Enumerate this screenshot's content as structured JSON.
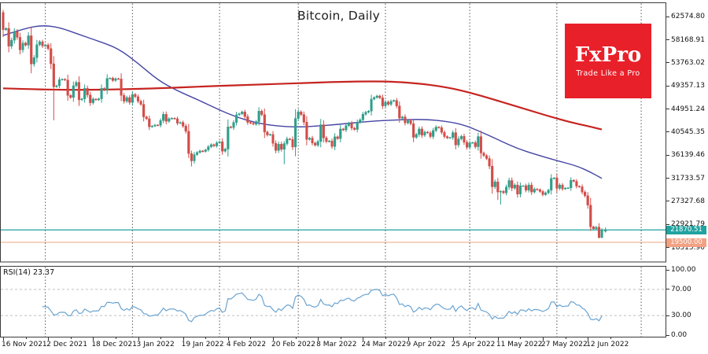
{
  "window": {
    "title": "Bitcoin, Daily"
  },
  "logo": {
    "brand": "FxPro",
    "tagline": "Trade Like a Pro",
    "bg": "#e8202a"
  },
  "rsi": {
    "label": "RSI(14) 23.37",
    "period": 14,
    "last_value": 23.37,
    "levels": [
      70,
      30
    ],
    "axis_ticks": [
      "100.00",
      "70.00",
      "30.00",
      "0.00"
    ],
    "axis_tick_values": [
      100,
      70,
      30,
      0
    ],
    "line_color": "#6aa3d0"
  },
  "price_axis": {
    "tick_labels": [
      "62574.80",
      "58168.91",
      "53763.02",
      "49357.13",
      "44951.24",
      "40545.35",
      "36139.46",
      "31733.57",
      "27327.68",
      "22921.79",
      "18515.90"
    ],
    "badges": [
      {
        "name": "current-price-badge",
        "text": "21870.51",
        "value": 21870.51,
        "bg": "#21a3a0"
      },
      {
        "name": "support-level-badge",
        "text": "19500.00",
        "value": 19500.0,
        "bg": "#f2a183"
      }
    ]
  },
  "date_axis": {
    "labels": [
      {
        "text": "16 Nov 2021",
        "day": 0
      },
      {
        "text": "2 Dec 2021",
        "day": 16
      },
      {
        "text": "18 Dec 2021",
        "day": 32
      },
      {
        "text": "3 Jan 2022",
        "day": 48
      },
      {
        "text": "19 Jan 2022",
        "day": 64
      },
      {
        "text": "4 Feb 2022",
        "day": 80
      },
      {
        "text": "20 Feb 2022",
        "day": 96
      },
      {
        "text": "8 Mar 2022",
        "day": 112
      },
      {
        "text": "24 Mar 2022",
        "day": 128
      },
      {
        "text": "9 Apr 2022",
        "day": 144
      },
      {
        "text": "25 Apr 2022",
        "day": 160
      },
      {
        "text": "11 May 2022",
        "day": 176
      },
      {
        "text": "27 May 2022",
        "day": 192
      },
      {
        "text": "12 Jun 2022",
        "day": 208
      }
    ]
  },
  "chart_data": {
    "type": "candlestick",
    "title": "Bitcoin, Daily",
    "symbol": "Bitcoin",
    "timeframe": "Daily",
    "x_range_days": 227,
    "price_axis_values": [
      62574.8,
      58168.91,
      53763.02,
      49357.13,
      44951.24,
      40545.35,
      36139.46,
      31733.57,
      27327.68,
      22921.79,
      18515.9
    ],
    "grid_month_days": [
      15,
      46,
      77,
      105,
      136,
      166,
      197,
      227
    ],
    "style": {
      "bull": "#2f9e8a",
      "bear": "#d24c48",
      "grid": "#555",
      "border": "#3a3a3a"
    },
    "first_open": 63400,
    "closes": [
      60100,
      60350,
      56950,
      58100,
      59750,
      58650,
      56250,
      57550,
      57150,
      58950,
      53550,
      54750,
      57250,
      57800,
      57000,
      57200,
      56500,
      53600,
      49200,
      49400,
      50550,
      50650,
      50500,
      47550,
      47150,
      49400,
      50050,
      46700,
      46900,
      48900,
      47650,
      46150,
      46850,
      46700,
      46900,
      48900,
      48600,
      50800,
      50850,
      50400,
      50750,
      50700,
      47550,
      46450,
      47150,
      46200,
      47750,
      47300,
      46450,
      45850,
      43450,
      43100,
      41550,
      41700,
      41900,
      41850,
      42750,
      43950,
      42600,
      43100,
      43200,
      43100,
      42250,
      42400,
      41700,
      40700,
      36450,
      35050,
      36250,
      36650,
      36950,
      36850,
      37150,
      37750,
      38150,
      37900,
      38500,
      38700,
      36900,
      37300,
      41550,
      41400,
      42400,
      43850,
      44050,
      44400,
      43500,
      42400,
      42250,
      42050,
      42550,
      44550,
      43900,
      40550,
      40000,
      40100,
      38400,
      37050,
      38250,
      37250,
      38350,
      39250,
      39150,
      37700,
      43150,
      44400,
      43900,
      42450,
      39150,
      39400,
      38450,
      38050,
      38750,
      41950,
      39450,
      38750,
      38850,
      37800,
      39650,
      39300,
      41150,
      40950,
      41800,
      42250,
      41300,
      41050,
      42400,
      42900,
      43950,
      44350,
      44550,
      46850,
      47150,
      47450,
      47100,
      45550,
      46300,
      45850,
      46450,
      46600,
      45550,
      43200,
      43450,
      42300,
      42750,
      42150,
      39550,
      40100,
      41150,
      39950,
      40550,
      40400,
      39700,
      40850,
      41500,
      41400,
      40500,
      39700,
      39450,
      39500,
      40450,
      38100,
      39250,
      39750,
      38600,
      37650,
      38500,
      38550,
      37750,
      39700,
      36550,
      36050,
      35500,
      34050,
      30100,
      31050,
      29100,
      29250,
      28950,
      30050,
      31300,
      29850,
      30450,
      28700,
      30300,
      30300,
      29450,
      30450,
      29100,
      29650,
      29550,
      29200,
      28600,
      28950,
      29450,
      31700,
      31800,
      29800,
      30450,
      29700,
      29850,
      29900,
      31350,
      31150,
      30200,
      30100,
      29100,
      28400,
      26600,
      22450,
      22100,
      22400,
      20400,
      21870.51
    ],
    "wick_overrides": {
      "0": {
        "high": 63900,
        "low": 58700
      },
      "18": {
        "low": 42800
      },
      "66": {
        "low": 35600
      },
      "67": {
        "low": 34000
      },
      "100": {
        "low": 34400
      },
      "176": {
        "low": 27600
      },
      "177": {
        "low": 26700
      },
      "209": {
        "low": 21700
      },
      "212": {
        "low": 20250
      },
      "213": {
        "low": 20300,
        "high": 22200
      }
    },
    "forming_candle": {
      "day": 214.3,
      "open": 21600,
      "close": 21870.51,
      "high": 22350,
      "low": 21350
    },
    "hlines": [
      {
        "name": "current-price-line",
        "value": 21870.51,
        "color": "#21a3a0",
        "width": 1.3
      },
      {
        "name": "support-level-line",
        "value": 19500.0,
        "color": "#eda584",
        "width": 1
      }
    ],
    "overlays": [
      {
        "name": "ma-fast",
        "color": "#4444a4",
        "width": 1.4,
        "anchors": [
          [
            0,
            59000
          ],
          [
            8,
            60400
          ],
          [
            14,
            60950
          ],
          [
            20,
            60550
          ],
          [
            27,
            59200
          ],
          [
            34,
            57900
          ],
          [
            41,
            56500
          ],
          [
            48,
            53700
          ],
          [
            55,
            50500
          ],
          [
            62,
            48400
          ],
          [
            69,
            46800
          ],
          [
            76,
            45000
          ],
          [
            83,
            43400
          ],
          [
            90,
            42300
          ],
          [
            97,
            41700
          ],
          [
            105,
            41500
          ],
          [
            112,
            41700
          ],
          [
            119,
            42000
          ],
          [
            130,
            42600
          ],
          [
            140,
            42900
          ],
          [
            150,
            43000
          ],
          [
            158,
            42600
          ],
          [
            164,
            41900
          ],
          [
            170,
            40600
          ],
          [
            176,
            39100
          ],
          [
            183,
            37400
          ],
          [
            190,
            36200
          ],
          [
            197,
            35100
          ],
          [
            204,
            34100
          ],
          [
            209,
            32900
          ],
          [
            213,
            31700
          ]
        ]
      },
      {
        "name": "ma-slow",
        "color": "#c62420",
        "width": 2.2,
        "anchors": [
          [
            0,
            48900
          ],
          [
            15,
            48650
          ],
          [
            30,
            48600
          ],
          [
            45,
            48750
          ],
          [
            60,
            49000
          ],
          [
            75,
            49350
          ],
          [
            90,
            49600
          ],
          [
            105,
            49900
          ],
          [
            120,
            50150
          ],
          [
            132,
            50250
          ],
          [
            140,
            50150
          ],
          [
            148,
            49800
          ],
          [
            155,
            49350
          ],
          [
            162,
            48650
          ],
          [
            170,
            47500
          ],
          [
            178,
            46200
          ],
          [
            186,
            44900
          ],
          [
            194,
            43600
          ],
          [
            202,
            42400
          ],
          [
            208,
            41700
          ],
          [
            213,
            41050
          ]
        ]
      }
    ]
  }
}
